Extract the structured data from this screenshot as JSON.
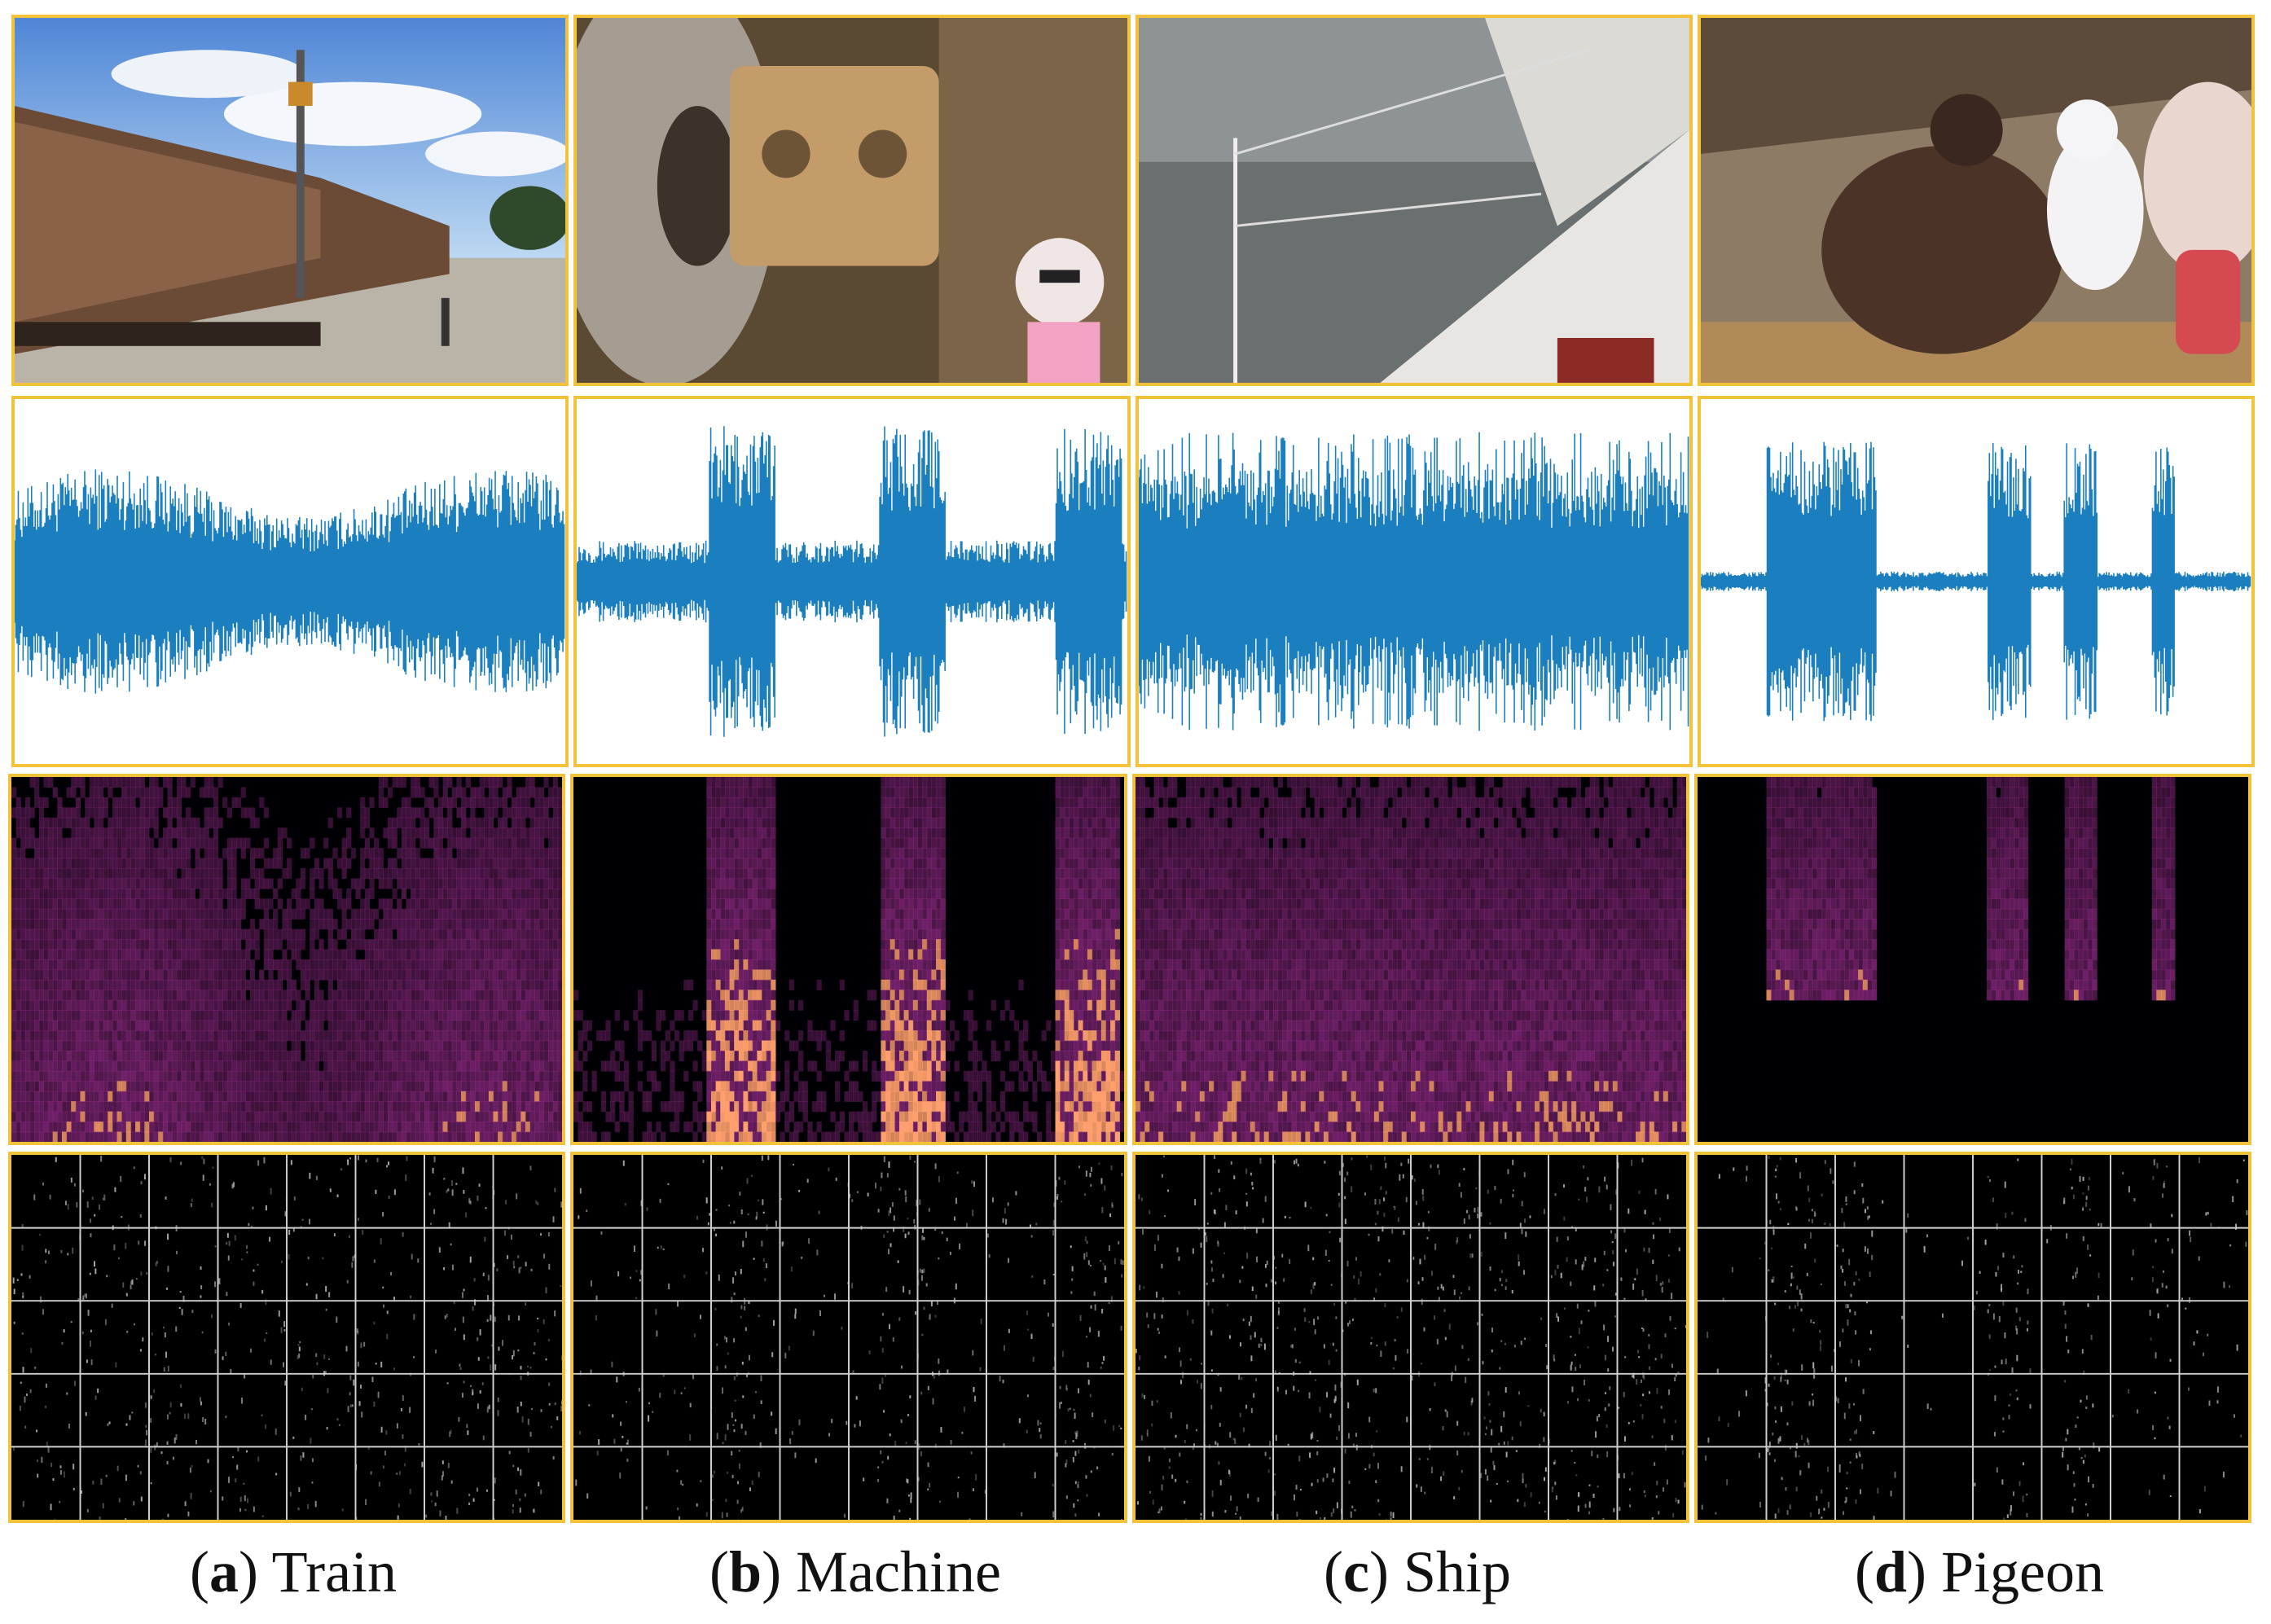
{
  "panels": [
    {
      "letter": "a",
      "name": "Train",
      "photo": "train-photo",
      "wave_style": "dense"
    },
    {
      "letter": "b",
      "name": "Machine",
      "photo": "machine-photo",
      "wave_style": "bursts"
    },
    {
      "letter": "c",
      "name": "Ship",
      "photo": "ship-photo",
      "wave_style": "spiky"
    },
    {
      "letter": "d",
      "name": "Pigeon",
      "photo": "pigeon-photo",
      "wave_style": "calls"
    }
  ],
  "colors": {
    "frame": "#f2c23b",
    "waveform": "#1b7fbf",
    "spectrogram_low": "#000004",
    "spectrogram_mid": "#8c2981",
    "spectrogram_high": "#fe9f6d",
    "grid_line": "#cfcfcf"
  }
}
